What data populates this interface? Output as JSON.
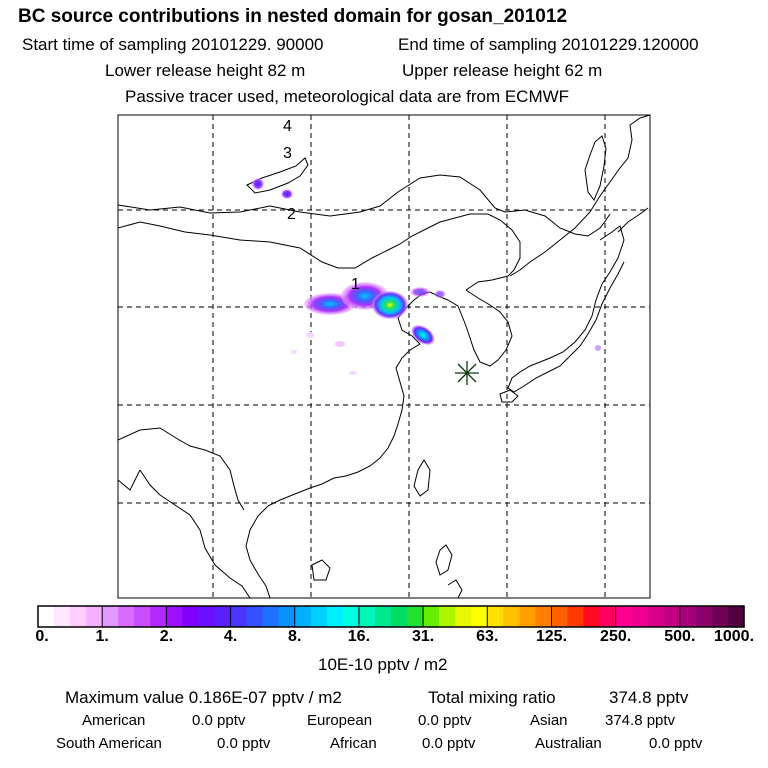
{
  "header": {
    "title": "BC  source contributions in nested domain for gosan_201012",
    "start_label": "Start time of sampling 20101229. 90000",
    "end_label": "End time of sampling 20101229.120000",
    "lower_label": "Lower release height   82 m",
    "upper_label": "Upper release height   62 m",
    "info_line": "Passive tracer used, meteorological data are from ECMWF"
  },
  "map": {
    "marker_labels": [
      "1",
      "2",
      "3",
      "4"
    ],
    "receptor_symbol": "star-receptor-marker"
  },
  "colorbar": {
    "tick_labels": [
      "0.",
      "1.",
      "2.",
      "4.",
      "8.",
      "16.",
      "31.",
      "63.",
      "125.",
      "250.",
      "500.",
      "1000."
    ],
    "units": "10E-10 pptv / m2",
    "colors": [
      "#ffffff",
      "#ffe6ff",
      "#ffccff",
      "#f5b0ff",
      "#e599ff",
      "#d86cff",
      "#c84dff",
      "#b329ff",
      "#9c0fff",
      "#7f00ff",
      "#6a0fff",
      "#5a1fff",
      "#4a35ff",
      "#3550ff",
      "#1f70ff",
      "#0a90ff",
      "#00b0ff",
      "#00d0ff",
      "#00f0ff",
      "#00ffe0",
      "#00f5b8",
      "#00e890",
      "#00dd66",
      "#20e030",
      "#66ee00",
      "#b0f500",
      "#e8f800",
      "#ffff00",
      "#ffe000",
      "#ffc000",
      "#ffa000",
      "#ff8000",
      "#ff6000",
      "#ff3a00",
      "#ff0a20",
      "#ff0060",
      "#ff0090",
      "#f00090",
      "#d8008a",
      "#c00080",
      "#a80078",
      "#8a006a",
      "#6e0055",
      "#520040"
    ]
  },
  "summary": {
    "max_value_label": "Maximum value  0.186E-07 pptv / m2",
    "total_label": "Total mixing ratio",
    "total_value": "374.8 pptv",
    "american_label": "American",
    "american_value": "0.0 pptv",
    "european_label": "European",
    "european_value": "0.0 pptv",
    "asian_label": "Asian",
    "asian_value": "374.8 pptv",
    "south_american_label": "South American",
    "south_american_value": "0.0 pptv",
    "african_label": "African",
    "african_value": "0.0 pptv",
    "australian_label": "Australian",
    "australian_value": "0.0 pptv"
  }
}
